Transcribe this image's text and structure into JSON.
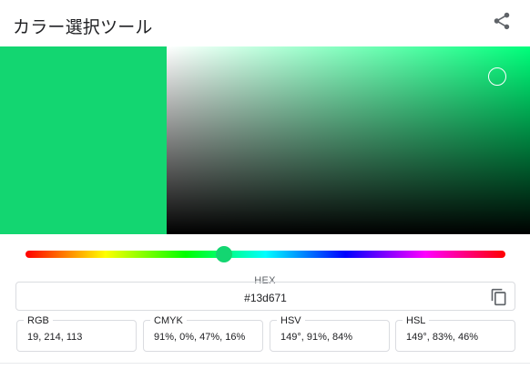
{
  "app": {
    "title": "カラー選択ツール"
  },
  "icons": {
    "share": "share-icon",
    "copy": "copy-icon"
  },
  "color": {
    "hex": "#13d671",
    "hue_deg": 149,
    "saturation_fraction": 0.91,
    "value_fraction": 0.84,
    "hue_fraction": 0.414
  },
  "hex_field": {
    "label": "HEX",
    "value": "#13d671"
  },
  "values": {
    "rgb": {
      "label": "RGB",
      "value": "19, 214, 113"
    },
    "cmyk": {
      "label": "CMYK",
      "value": "91%, 0%, 47%, 16%"
    },
    "hsv": {
      "label": "HSV",
      "value": "149°, 91%, 84%"
    },
    "hsl": {
      "label": "HSL",
      "value": "149°, 83%, 46%"
    }
  },
  "colors": {
    "icon_gray": "#5f6368",
    "border": "#dadce0"
  }
}
